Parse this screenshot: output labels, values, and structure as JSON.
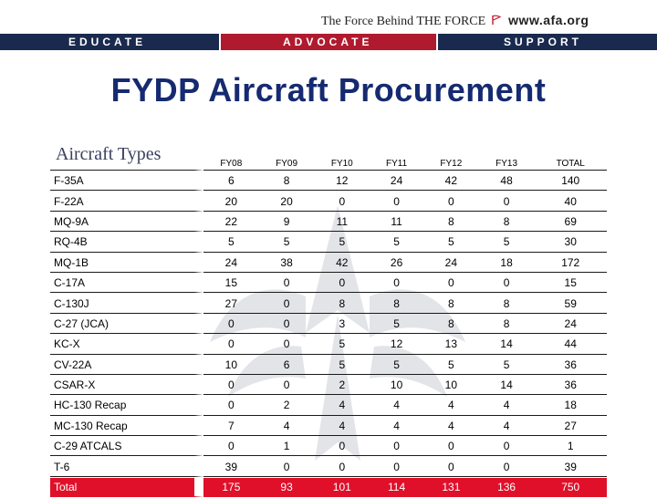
{
  "header": {
    "tagline": "The Force Behind THE FORCE",
    "url": "www.afa.org",
    "bands": [
      "EDUCATE",
      "ADVOCATE",
      "SUPPORT"
    ]
  },
  "title": "FYDP Aircraft Procurement",
  "table": {
    "columns": [
      "Aircraft Types",
      "FY08",
      "FY09",
      "FY10",
      "FY11",
      "FY12",
      "FY13",
      "TOTAL"
    ],
    "rows": [
      {
        "type": "F-35A",
        "values": [
          "6",
          "8",
          "12",
          "24",
          "42",
          "48",
          "140"
        ]
      },
      {
        "type": "F-22A",
        "values": [
          "20",
          "20",
          "0",
          "0",
          "0",
          "0",
          "40"
        ]
      },
      {
        "type": "MQ-9A",
        "values": [
          "22",
          "9",
          "11",
          "11",
          "8",
          "8",
          "69"
        ]
      },
      {
        "type": "RQ-4B",
        "values": [
          "5",
          "5",
          "5",
          "5",
          "5",
          "5",
          "30"
        ]
      },
      {
        "type": "MQ-1B",
        "values": [
          "24",
          "38",
          "42",
          "26",
          "24",
          "18",
          "172"
        ]
      },
      {
        "type": "C-17A",
        "values": [
          "15",
          "0",
          "0",
          "0",
          "0",
          "0",
          "15"
        ]
      },
      {
        "type": "C-130J",
        "values": [
          "27",
          "0",
          "8",
          "8",
          "8",
          "8",
          "59"
        ]
      },
      {
        "type": "C-27 (JCA)",
        "values": [
          "0",
          "0",
          "3",
          "5",
          "8",
          "8",
          "24"
        ]
      },
      {
        "type": "KC-X",
        "values": [
          "0",
          "0",
          "5",
          "12",
          "13",
          "14",
          "44"
        ]
      },
      {
        "type": "CV-22A",
        "values": [
          "10",
          "6",
          "5",
          "5",
          "5",
          "5",
          "36"
        ]
      },
      {
        "type": "CSAR-X",
        "values": [
          "0",
          "0",
          "2",
          "10",
          "10",
          "14",
          "36"
        ]
      },
      {
        "type": "HC-130 Recap",
        "values": [
          "0",
          "2",
          "4",
          "4",
          "4",
          "4",
          "18"
        ]
      },
      {
        "type": "MC-130 Recap",
        "values": [
          "7",
          "4",
          "4",
          "4",
          "4",
          "4",
          "27"
        ]
      },
      {
        "type": "C-29 ATCALS",
        "values": [
          "0",
          "1",
          "0",
          "0",
          "0",
          "0",
          "1"
        ]
      },
      {
        "type": "T-6",
        "values": [
          "39",
          "0",
          "0",
          "0",
          "0",
          "0",
          "39"
        ]
      },
      {
        "type": "Total",
        "values": [
          "175",
          "93",
          "101",
          "114",
          "131",
          "136",
          "750"
        ]
      }
    ]
  },
  "colors": {
    "navy": "#1a2a4e",
    "red": "#b01a2e",
    "title": "#152a70",
    "total_row": "#e0102a"
  }
}
